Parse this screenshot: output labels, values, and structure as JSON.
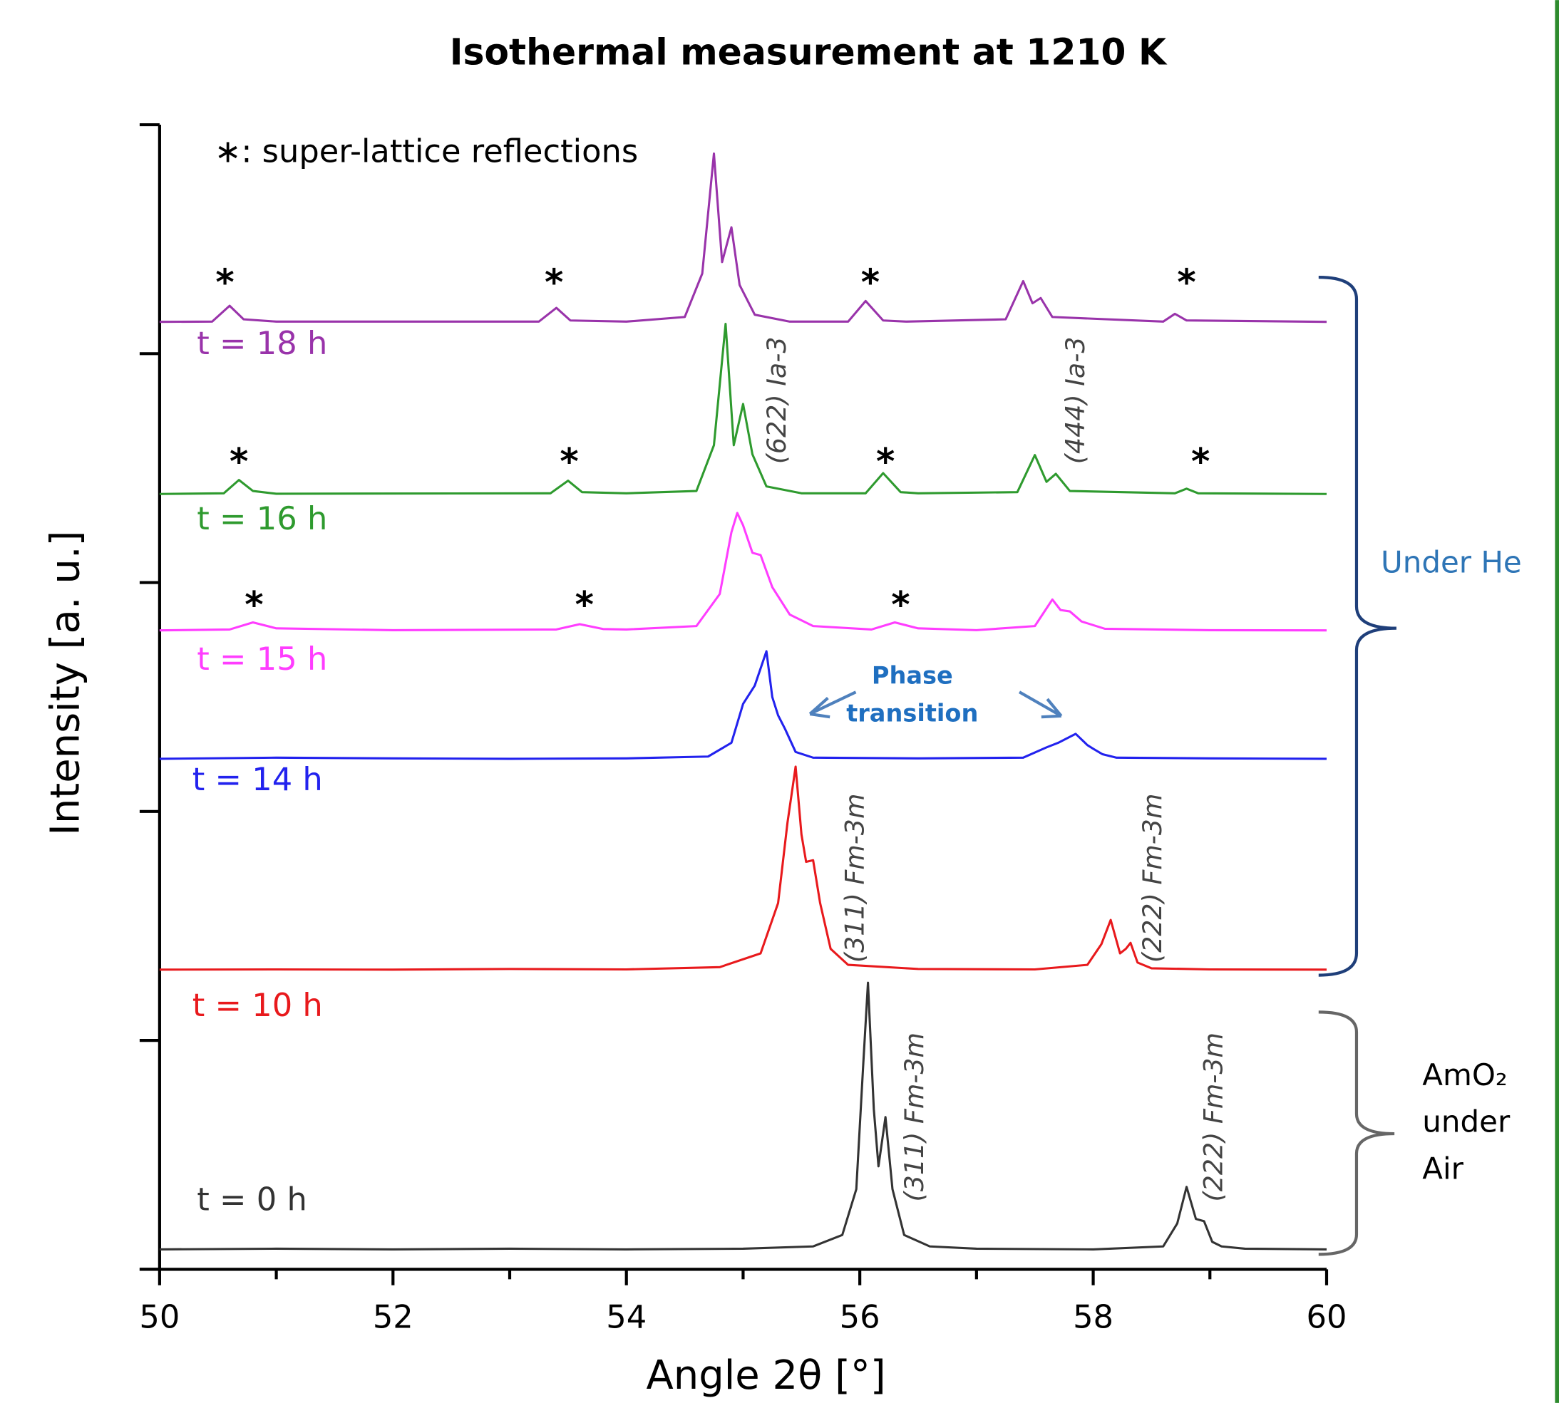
{
  "chart_data": {
    "type": "line",
    "title": "Isothermal measurement at 1210 K",
    "xlabel": "Angle 2θ [°]",
    "ylabel": "Intensity [a. u.]",
    "xlim": [
      50,
      60
    ],
    "xticks": [
      50,
      52,
      54,
      56,
      58,
      60
    ],
    "xminorticks": [
      51,
      53,
      55,
      57,
      59
    ],
    "ylim": [
      0,
      5
    ],
    "yticks": [
      0,
      1,
      2,
      3,
      4,
      5
    ],
    "series": [
      {
        "name": "t = 0 h",
        "color": "#333333",
        "label_at": [
          50.32,
          0.296
        ],
        "x": [
          50,
          51,
          52,
          53,
          54,
          55,
          55.6,
          55.85,
          55.97,
          56.03,
          56.07,
          56.12,
          56.16,
          56.22,
          56.28,
          56.38,
          56.6,
          57,
          58,
          58.6,
          58.72,
          58.8,
          58.88,
          58.95,
          59.02,
          59.1,
          59.3,
          60
        ],
        "values": [
          0.087,
          0.09,
          0.087,
          0.09,
          0.087,
          0.09,
          0.1,
          0.15,
          0.35,
          0.9,
          1.252,
          0.7,
          0.45,
          0.665,
          0.35,
          0.15,
          0.1,
          0.09,
          0.087,
          0.1,
          0.2,
          0.36,
          0.22,
          0.21,
          0.12,
          0.1,
          0.09,
          0.087
        ]
      },
      {
        "name": "t = 10 h",
        "color": "#e8191c",
        "label_at": [
          50.28,
          1.143
        ],
        "x": [
          50,
          51,
          52,
          53,
          54,
          54.8,
          55.15,
          55.3,
          55.38,
          55.45,
          55.5,
          55.54,
          55.6,
          55.66,
          55.75,
          55.9,
          56.5,
          57.5,
          57.95,
          58.07,
          58.15,
          58.23,
          58.28,
          58.32,
          58.38,
          58.5,
          59,
          60
        ],
        "values": [
          1.309,
          1.31,
          1.309,
          1.312,
          1.31,
          1.32,
          1.38,
          1.6,
          1.95,
          2.196,
          1.9,
          1.78,
          1.787,
          1.6,
          1.4,
          1.33,
          1.312,
          1.31,
          1.33,
          1.42,
          1.526,
          1.38,
          1.4,
          1.426,
          1.34,
          1.315,
          1.31,
          1.309
        ]
      },
      {
        "name": "t = 14 h",
        "color": "#2222ee",
        "label_at": [
          50.28,
          2.13
        ],
        "x": [
          50,
          51,
          52,
          53,
          54,
          54.7,
          54.9,
          55.0,
          55.1,
          55.2,
          55.25,
          55.3,
          55.36,
          55.45,
          55.6,
          56.5,
          57.4,
          57.6,
          57.7,
          57.85,
          57.95,
          58.0,
          58.08,
          58.2,
          59,
          60
        ],
        "values": [
          2.23,
          2.235,
          2.232,
          2.23,
          2.232,
          2.24,
          2.3,
          2.47,
          2.55,
          2.7,
          2.5,
          2.42,
          2.36,
          2.26,
          2.235,
          2.232,
          2.235,
          2.28,
          2.3,
          2.339,
          2.29,
          2.274,
          2.25,
          2.235,
          2.232,
          2.23
        ]
      },
      {
        "name": "t = 15 h",
        "color": "#ff3dff",
        "label_at": [
          50.32,
          2.657
        ],
        "x": [
          50,
          50.6,
          50.8,
          51.0,
          52,
          53.4,
          53.6,
          53.8,
          54,
          54.6,
          54.8,
          54.9,
          54.95,
          55.0,
          55.08,
          55.15,
          55.25,
          55.4,
          55.6,
          56.1,
          56.3,
          56.5,
          57,
          57.5,
          57.65,
          57.72,
          57.8,
          57.9,
          58.1,
          59,
          60
        ],
        "values": [
          2.791,
          2.795,
          2.826,
          2.8,
          2.792,
          2.795,
          2.818,
          2.797,
          2.795,
          2.81,
          2.95,
          3.22,
          3.304,
          3.25,
          3.13,
          3.12,
          2.98,
          2.86,
          2.81,
          2.795,
          2.826,
          2.8,
          2.792,
          2.81,
          2.926,
          2.88,
          2.874,
          2.83,
          2.798,
          2.792,
          2.791
        ]
      },
      {
        "name": "t = 16 h",
        "color": "#2e9a2e",
        "label_at": [
          50.32,
          3.27
        ],
        "x": [
          50,
          50.55,
          50.68,
          50.8,
          51,
          53.35,
          53.5,
          53.62,
          54,
          54.6,
          54.75,
          54.85,
          54.92,
          55.0,
          55.08,
          55.2,
          55.5,
          56.05,
          56.2,
          56.35,
          56.5,
          57.35,
          57.5,
          57.6,
          57.68,
          57.8,
          58.7,
          58.8,
          58.9,
          60
        ],
        "values": [
          3.387,
          3.39,
          3.448,
          3.4,
          3.388,
          3.39,
          3.445,
          3.395,
          3.39,
          3.4,
          3.6,
          4.13,
          3.6,
          3.78,
          3.56,
          3.42,
          3.39,
          3.39,
          3.478,
          3.395,
          3.39,
          3.395,
          3.557,
          3.44,
          3.475,
          3.4,
          3.39,
          3.41,
          3.39,
          3.387
        ]
      },
      {
        "name": "t = 18 h",
        "color": "#9933aa",
        "label_at": [
          50.32,
          4.035
        ],
        "x": [
          50,
          50.45,
          50.6,
          50.72,
          51,
          53.25,
          53.4,
          53.52,
          54,
          54.5,
          54.65,
          54.75,
          54.82,
          54.9,
          54.97,
          55.1,
          55.4,
          55.9,
          56.05,
          56.2,
          56.4,
          57.25,
          57.4,
          57.48,
          57.55,
          57.65,
          58.6,
          58.7,
          58.8,
          60
        ],
        "values": [
          4.139,
          4.14,
          4.209,
          4.15,
          4.14,
          4.14,
          4.2,
          4.145,
          4.14,
          4.16,
          4.35,
          4.874,
          4.4,
          4.552,
          4.3,
          4.17,
          4.14,
          4.14,
          4.23,
          4.145,
          4.14,
          4.15,
          4.317,
          4.22,
          4.243,
          4.16,
          4.14,
          4.174,
          4.145,
          4.139
        ]
      }
    ],
    "note": {
      "text": "∗: super-lattice reflections",
      "x": 50.47,
      "y": 4.874
    },
    "asterisks": [
      {
        "text": "*",
        "x": 50.56,
        "y": 4.326
      },
      {
        "text": "*",
        "x": 53.38,
        "y": 4.326
      },
      {
        "text": "*",
        "x": 56.09,
        "y": 4.326
      },
      {
        "text": "*",
        "x": 58.8,
        "y": 4.326
      },
      {
        "text": "*",
        "x": 50.68,
        "y": 3.543
      },
      {
        "text": "*",
        "x": 53.51,
        "y": 3.543
      },
      {
        "text": "*",
        "x": 56.22,
        "y": 3.543
      },
      {
        "text": "*",
        "x": 58.92,
        "y": 3.543
      },
      {
        "text": "*",
        "x": 50.81,
        "y": 2.917
      },
      {
        "text": "*",
        "x": 53.64,
        "y": 2.917
      },
      {
        "text": "*",
        "x": 56.35,
        "y": 2.917
      }
    ],
    "peak_labels": [
      {
        "text": "(622) Ia-3",
        "x": 55.3,
        "y": 3.796
      },
      {
        "text": "(444) Ia-3",
        "x": 57.86,
        "y": 3.796
      },
      {
        "text": "(311) Fm-3m",
        "x": 55.97,
        "y": 1.709
      },
      {
        "text": "(222) Fm-3m",
        "x": 58.52,
        "y": 1.709
      },
      {
        "text": "(311) Fm-3m",
        "x": 56.48,
        "y": 0.665
      },
      {
        "text": "(222) Fm-3m",
        "x": 59.04,
        "y": 0.665
      }
    ],
    "phase_label": {
      "lines": [
        "Phase",
        "transition"
      ],
      "x": 56.45,
      "y": 2.505
    },
    "group_he": "Under He",
    "group_air": [
      "AmO₂",
      "under",
      "Air"
    ]
  }
}
